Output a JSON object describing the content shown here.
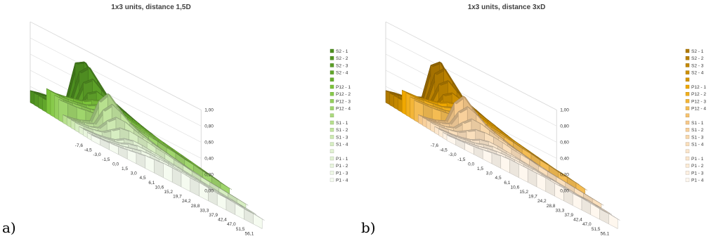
{
  "panels": [
    {
      "id": "a",
      "label": "a)",
      "colors": {
        "dark": "#4d8f1f",
        "mid": "#7cc43a",
        "light": "#b7e08e",
        "pale": "#e2f2d3"
      },
      "chart_data": {
        "type": "area",
        "title": "1x3 units, distance 1,5D",
        "x_ticks": [
          "-7,6",
          "-4,5",
          "-3,0",
          "-1,5",
          "0,0",
          "1,5",
          "3,0",
          "4,5",
          "6,1",
          "10,6",
          "15,2",
          "19,7",
          "24,2",
          "28,8",
          "33,3",
          "37,9",
          "42,4",
          "47,0",
          "51,5",
          "56,1"
        ],
        "z_ticks": [
          "0,00",
          "0,20",
          "0,40",
          "0,60",
          "0,80",
          "1,00"
        ],
        "zlim": [
          0,
          1
        ],
        "legend": [
          "S2 - 1",
          "S2 - 2",
          "S2 - 3",
          "S2 - 4",
          "",
          "P12 - 1",
          "P12 - 2",
          "P12 - 3",
          "P12 - 4",
          "",
          "S1 - 1",
          "S1 - 2",
          "S1 - 3",
          "S1 - 4",
          "",
          "P1 - 1",
          "P1 - 2",
          "P1 - 3",
          "P1 - 4"
        ],
        "series": [
          {
            "name": "S2 - 1",
            "values": [
              0.15,
              0.18,
              0.2,
              0.25,
              0.3,
              0.78,
              0.85,
              0.72,
              0.6,
              0.55,
              0.5,
              0.46,
              0.42,
              0.38,
              0.35,
              0.32,
              0.3,
              0.28,
              0.26,
              0.24
            ]
          },
          {
            "name": "S2 - 2",
            "values": [
              0.15,
              0.18,
              0.2,
              0.25,
              0.3,
              0.7,
              0.82,
              0.7,
              0.58,
              0.54,
              0.5,
              0.46,
              0.42,
              0.38,
              0.35,
              0.32,
              0.3,
              0.28,
              0.26,
              0.24
            ]
          },
          {
            "name": "S2 - 3",
            "values": [
              0.15,
              0.17,
              0.2,
              0.24,
              0.3,
              0.6,
              0.7,
              0.62,
              0.55,
              0.52,
              0.48,
              0.45,
              0.41,
              0.38,
              0.35,
              0.32,
              0.3,
              0.28,
              0.26,
              0.24
            ]
          },
          {
            "name": "S2 - 4",
            "values": [
              0.15,
              0.17,
              0.19,
              0.22,
              0.28,
              0.5,
              0.58,
              0.55,
              0.52,
              0.5,
              0.47,
              0.44,
              0.41,
              0.38,
              0.35,
              0.32,
              0.3,
              0.28,
              0.26,
              0.24
            ]
          },
          {
            "name": "P12 - 1",
            "values": [
              0.3,
              0.3,
              0.32,
              0.35,
              0.38,
              0.45,
              0.5,
              0.5,
              0.48,
              0.46,
              0.44,
              0.42,
              0.4,
              0.38,
              0.36,
              0.34,
              0.32,
              0.3,
              0.28,
              0.26
            ]
          },
          {
            "name": "P12 - 2",
            "values": [
              0.3,
              0.3,
              0.31,
              0.33,
              0.36,
              0.42,
              0.46,
              0.46,
              0.45,
              0.44,
              0.42,
              0.4,
              0.38,
              0.36,
              0.34,
              0.32,
              0.3,
              0.29,
              0.27,
              0.25
            ]
          },
          {
            "name": "P12 - 3",
            "values": [
              0.28,
              0.28,
              0.3,
              0.32,
              0.34,
              0.38,
              0.42,
              0.43,
              0.42,
              0.41,
              0.4,
              0.38,
              0.36,
              0.35,
              0.33,
              0.31,
              0.3,
              0.28,
              0.27,
              0.25
            ]
          },
          {
            "name": "P12 - 4",
            "values": [
              0.26,
              0.27,
              0.28,
              0.3,
              0.32,
              0.35,
              0.38,
              0.4,
              0.4,
              0.39,
              0.38,
              0.37,
              0.35,
              0.34,
              0.32,
              0.31,
              0.29,
              0.28,
              0.26,
              0.25
            ]
          },
          {
            "name": "S1 - 1",
            "values": [
              0.1,
              0.12,
              0.15,
              0.2,
              0.5,
              0.65,
              0.55,
              0.45,
              0.4,
              0.36,
              0.33,
              0.3,
              0.28,
              0.26,
              0.24,
              0.22,
              0.21,
              0.2,
              0.19,
              0.18
            ]
          },
          {
            "name": "S1 - 2",
            "values": [
              0.1,
              0.12,
              0.15,
              0.2,
              0.42,
              0.55,
              0.5,
              0.43,
              0.38,
              0.35,
              0.32,
              0.3,
              0.28,
              0.26,
              0.24,
              0.22,
              0.21,
              0.2,
              0.19,
              0.18
            ]
          },
          {
            "name": "S1 - 3",
            "values": [
              0.1,
              0.12,
              0.14,
              0.18,
              0.32,
              0.42,
              0.42,
              0.38,
              0.35,
              0.33,
              0.31,
              0.29,
              0.27,
              0.25,
              0.24,
              0.22,
              0.21,
              0.2,
              0.19,
              0.18
            ]
          },
          {
            "name": "S1 - 4",
            "values": [
              0.1,
              0.11,
              0.13,
              0.16,
              0.24,
              0.32,
              0.34,
              0.33,
              0.32,
              0.3,
              0.29,
              0.27,
              0.26,
              0.24,
              0.23,
              0.22,
              0.21,
              0.2,
              0.19,
              0.18
            ]
          },
          {
            "name": "P1 - 1",
            "values": [
              0.08,
              0.09,
              0.1,
              0.12,
              0.15,
              0.22,
              0.25,
              0.25,
              0.24,
              0.23,
              0.22,
              0.21,
              0.2,
              0.19,
              0.18,
              0.17,
              0.16,
              0.15,
              0.14,
              0.13
            ]
          },
          {
            "name": "P1 - 2",
            "values": [
              0.08,
              0.09,
              0.1,
              0.12,
              0.14,
              0.19,
              0.22,
              0.22,
              0.22,
              0.21,
              0.21,
              0.2,
              0.19,
              0.18,
              0.17,
              0.16,
              0.15,
              0.14,
              0.14,
              0.13
            ]
          },
          {
            "name": "P1 - 3",
            "values": [
              0.07,
              0.08,
              0.09,
              0.11,
              0.13,
              0.16,
              0.19,
              0.2,
              0.2,
              0.2,
              0.19,
              0.19,
              0.18,
              0.17,
              0.16,
              0.15,
              0.15,
              0.14,
              0.13,
              0.12
            ]
          },
          {
            "name": "P1 - 4",
            "values": [
              0.07,
              0.08,
              0.09,
              0.1,
              0.12,
              0.14,
              0.16,
              0.17,
              0.18,
              0.18,
              0.18,
              0.17,
              0.17,
              0.16,
              0.15,
              0.15,
              0.14,
              0.13,
              0.13,
              0.12
            ]
          }
        ]
      }
    },
    {
      "id": "b",
      "label": "b)",
      "colors": {
        "dark": "#b07a00",
        "mid": "#f0a800",
        "light": "#f7c98a",
        "pale": "#fbe6cc"
      },
      "chart_data": {
        "type": "area",
        "title": "1x3 units, distance 3xD",
        "x_ticks": [
          "-7,6",
          "-4,5",
          "-3,0",
          "-1,5",
          "0,0",
          "1,5",
          "3,0",
          "4,5",
          "6,1",
          "10,6",
          "15,2",
          "19,7",
          "24,2",
          "28,8",
          "33,3",
          "37,9",
          "42,4",
          "47,0",
          "51,5",
          "56,1"
        ],
        "z_ticks": [
          "0,00",
          "0,20",
          "0,40",
          "0,60",
          "0,80",
          "1,00"
        ],
        "zlim": [
          0,
          1
        ],
        "legend": [
          "S2 - 1",
          "S2 - 2",
          "S2 - 3",
          "S2 - 4",
          "",
          "P12 - 1",
          "P12 - 2",
          "P12 - 3",
          "P12 - 4",
          "",
          "S1 - 1",
          "S1 - 2",
          "S1 - 3",
          "S1 - 4",
          "",
          "P1 - 1",
          "P1 - 2",
          "P1 - 3",
          "P1 - 4"
        ],
        "series": [
          {
            "name": "S2 - 1",
            "values": [
              0.15,
              0.18,
              0.2,
              0.25,
              0.3,
              0.75,
              0.85,
              0.7,
              0.58,
              0.52,
              0.48,
              0.44,
              0.4,
              0.37,
              0.34,
              0.31,
              0.29,
              0.27,
              0.25,
              0.23
            ]
          },
          {
            "name": "S2 - 2",
            "values": [
              0.15,
              0.18,
              0.2,
              0.25,
              0.3,
              0.68,
              0.8,
              0.68,
              0.56,
              0.51,
              0.47,
              0.43,
              0.4,
              0.37,
              0.34,
              0.31,
              0.29,
              0.27,
              0.25,
              0.23
            ]
          },
          {
            "name": "S2 - 3",
            "values": [
              0.15,
              0.17,
              0.2,
              0.24,
              0.3,
              0.58,
              0.68,
              0.6,
              0.53,
              0.5,
              0.46,
              0.43,
              0.39,
              0.36,
              0.34,
              0.31,
              0.29,
              0.27,
              0.25,
              0.23
            ]
          },
          {
            "name": "S2 - 4",
            "values": [
              0.15,
              0.17,
              0.19,
              0.22,
              0.28,
              0.48,
              0.56,
              0.53,
              0.5,
              0.48,
              0.45,
              0.42,
              0.39,
              0.36,
              0.33,
              0.31,
              0.29,
              0.27,
              0.25,
              0.23
            ]
          },
          {
            "name": "P12 - 1",
            "values": [
              0.28,
              0.29,
              0.3,
              0.33,
              0.36,
              0.42,
              0.46,
              0.46,
              0.45,
              0.44,
              0.42,
              0.4,
              0.38,
              0.36,
              0.34,
              0.32,
              0.3,
              0.28,
              0.27,
              0.25
            ]
          },
          {
            "name": "P12 - 2",
            "values": [
              0.28,
              0.28,
              0.3,
              0.32,
              0.34,
              0.39,
              0.43,
              0.44,
              0.43,
              0.42,
              0.4,
              0.38,
              0.37,
              0.35,
              0.33,
              0.31,
              0.29,
              0.28,
              0.26,
              0.25
            ]
          },
          {
            "name": "P12 - 3",
            "values": [
              0.26,
              0.27,
              0.28,
              0.3,
              0.32,
              0.36,
              0.4,
              0.41,
              0.41,
              0.4,
              0.39,
              0.37,
              0.35,
              0.34,
              0.32,
              0.3,
              0.29,
              0.27,
              0.26,
              0.24
            ]
          },
          {
            "name": "P12 - 4",
            "values": [
              0.25,
              0.26,
              0.27,
              0.29,
              0.31,
              0.33,
              0.36,
              0.38,
              0.38,
              0.38,
              0.37,
              0.36,
              0.34,
              0.33,
              0.31,
              0.3,
              0.28,
              0.27,
              0.26,
              0.24
            ]
          },
          {
            "name": "S1 - 1",
            "values": [
              0.1,
              0.12,
              0.15,
              0.2,
              0.48,
              0.62,
              0.52,
              0.43,
              0.38,
              0.35,
              0.32,
              0.29,
              0.27,
              0.25,
              0.23,
              0.22,
              0.21,
              0.2,
              0.19,
              0.18
            ]
          },
          {
            "name": "S1 - 2",
            "values": [
              0.1,
              0.12,
              0.15,
              0.2,
              0.4,
              0.52,
              0.48,
              0.41,
              0.37,
              0.34,
              0.31,
              0.29,
              0.27,
              0.25,
              0.23,
              0.22,
              0.21,
              0.2,
              0.19,
              0.18
            ]
          },
          {
            "name": "S1 - 3",
            "values": [
              0.1,
              0.12,
              0.14,
              0.18,
              0.3,
              0.4,
              0.4,
              0.37,
              0.34,
              0.32,
              0.3,
              0.28,
              0.26,
              0.25,
              0.23,
              0.22,
              0.21,
              0.2,
              0.19,
              0.18
            ]
          },
          {
            "name": "S1 - 4",
            "values": [
              0.1,
              0.11,
              0.13,
              0.16,
              0.23,
              0.3,
              0.32,
              0.32,
              0.31,
              0.29,
              0.28,
              0.27,
              0.25,
              0.24,
              0.23,
              0.22,
              0.21,
              0.2,
              0.19,
              0.18
            ]
          },
          {
            "name": "P1 - 1",
            "values": [
              0.08,
              0.09,
              0.1,
              0.12,
              0.15,
              0.21,
              0.24,
              0.24,
              0.23,
              0.22,
              0.21,
              0.2,
              0.19,
              0.18,
              0.17,
              0.16,
              0.15,
              0.15,
              0.14,
              0.13
            ]
          },
          {
            "name": "P1 - 2",
            "values": [
              0.08,
              0.09,
              0.1,
              0.12,
              0.14,
              0.18,
              0.21,
              0.21,
              0.21,
              0.21,
              0.2,
              0.19,
              0.18,
              0.18,
              0.17,
              0.16,
              0.15,
              0.14,
              0.14,
              0.13
            ]
          },
          {
            "name": "P1 - 3",
            "values": [
              0.07,
              0.08,
              0.09,
              0.11,
              0.13,
              0.16,
              0.18,
              0.19,
              0.19,
              0.19,
              0.19,
              0.18,
              0.18,
              0.17,
              0.16,
              0.15,
              0.15,
              0.14,
              0.13,
              0.12
            ]
          },
          {
            "name": "P1 - 4",
            "values": [
              0.07,
              0.08,
              0.09,
              0.1,
              0.12,
              0.14,
              0.16,
              0.17,
              0.17,
              0.17,
              0.17,
              0.17,
              0.16,
              0.16,
              0.15,
              0.15,
              0.14,
              0.13,
              0.13,
              0.12
            ]
          }
        ]
      }
    }
  ]
}
